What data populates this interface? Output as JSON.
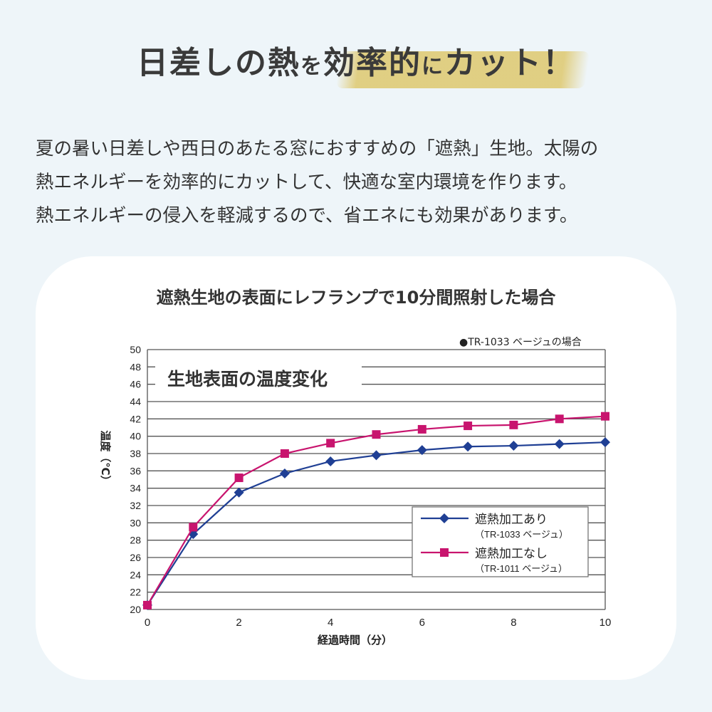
{
  "headline": {
    "part1": "日差しの熱",
    "part2": "を",
    "part3": "効率的",
    "part4": "に",
    "part5": "カット！"
  },
  "intro": [
    "夏の暑い日差しや西日のあたる窓におすすめの「遮熱」生地。太陽の",
    "熱エネルギーを効率的にカットして、快適な室内環境を作ります。",
    "熱エネルギーの侵入を軽減するので、省エネにも効果があります。"
  ],
  "card_title": "遮熱生地の表面にレフランプで10分間照射した場合",
  "note": "●TR-1033 ベージュの場合",
  "colors": {
    "background": "#eef5f9",
    "series_with": "#1f3f94",
    "series_without": "#c8146e",
    "brush": "#dec86e"
  },
  "chart_data": {
    "type": "line",
    "title": "生地表面の温度変化",
    "xlabel": "経過時間（分）",
    "ylabel": "温度（℃）",
    "xlim": [
      0,
      10
    ],
    "ylim": [
      20,
      50
    ],
    "x_ticks": [
      0,
      2,
      4,
      6,
      8,
      10
    ],
    "y_ticks": [
      20,
      22,
      24,
      26,
      28,
      30,
      32,
      34,
      36,
      38,
      40,
      42,
      44,
      46,
      48,
      50
    ],
    "grid": true,
    "legend_placement": "bottom-right",
    "x": [
      0,
      1,
      2,
      3,
      4,
      5,
      6,
      7,
      8,
      9,
      10
    ],
    "series": [
      {
        "name": "遮熱加工あり",
        "sub": "（TR-1033 ベージュ）",
        "marker": "diamond",
        "color": "#1f3f94",
        "values": [
          20.5,
          28.7,
          33.5,
          35.7,
          37.1,
          37.8,
          38.4,
          38.8,
          38.9,
          39.1,
          39.3
        ]
      },
      {
        "name": "遮熱加工なし",
        "sub": "（TR-1011 ベージュ）",
        "marker": "square",
        "color": "#c8146e",
        "values": [
          20.5,
          29.5,
          35.2,
          38.0,
          39.2,
          40.2,
          40.8,
          41.2,
          41.3,
          42.0,
          42.3
        ]
      }
    ]
  }
}
